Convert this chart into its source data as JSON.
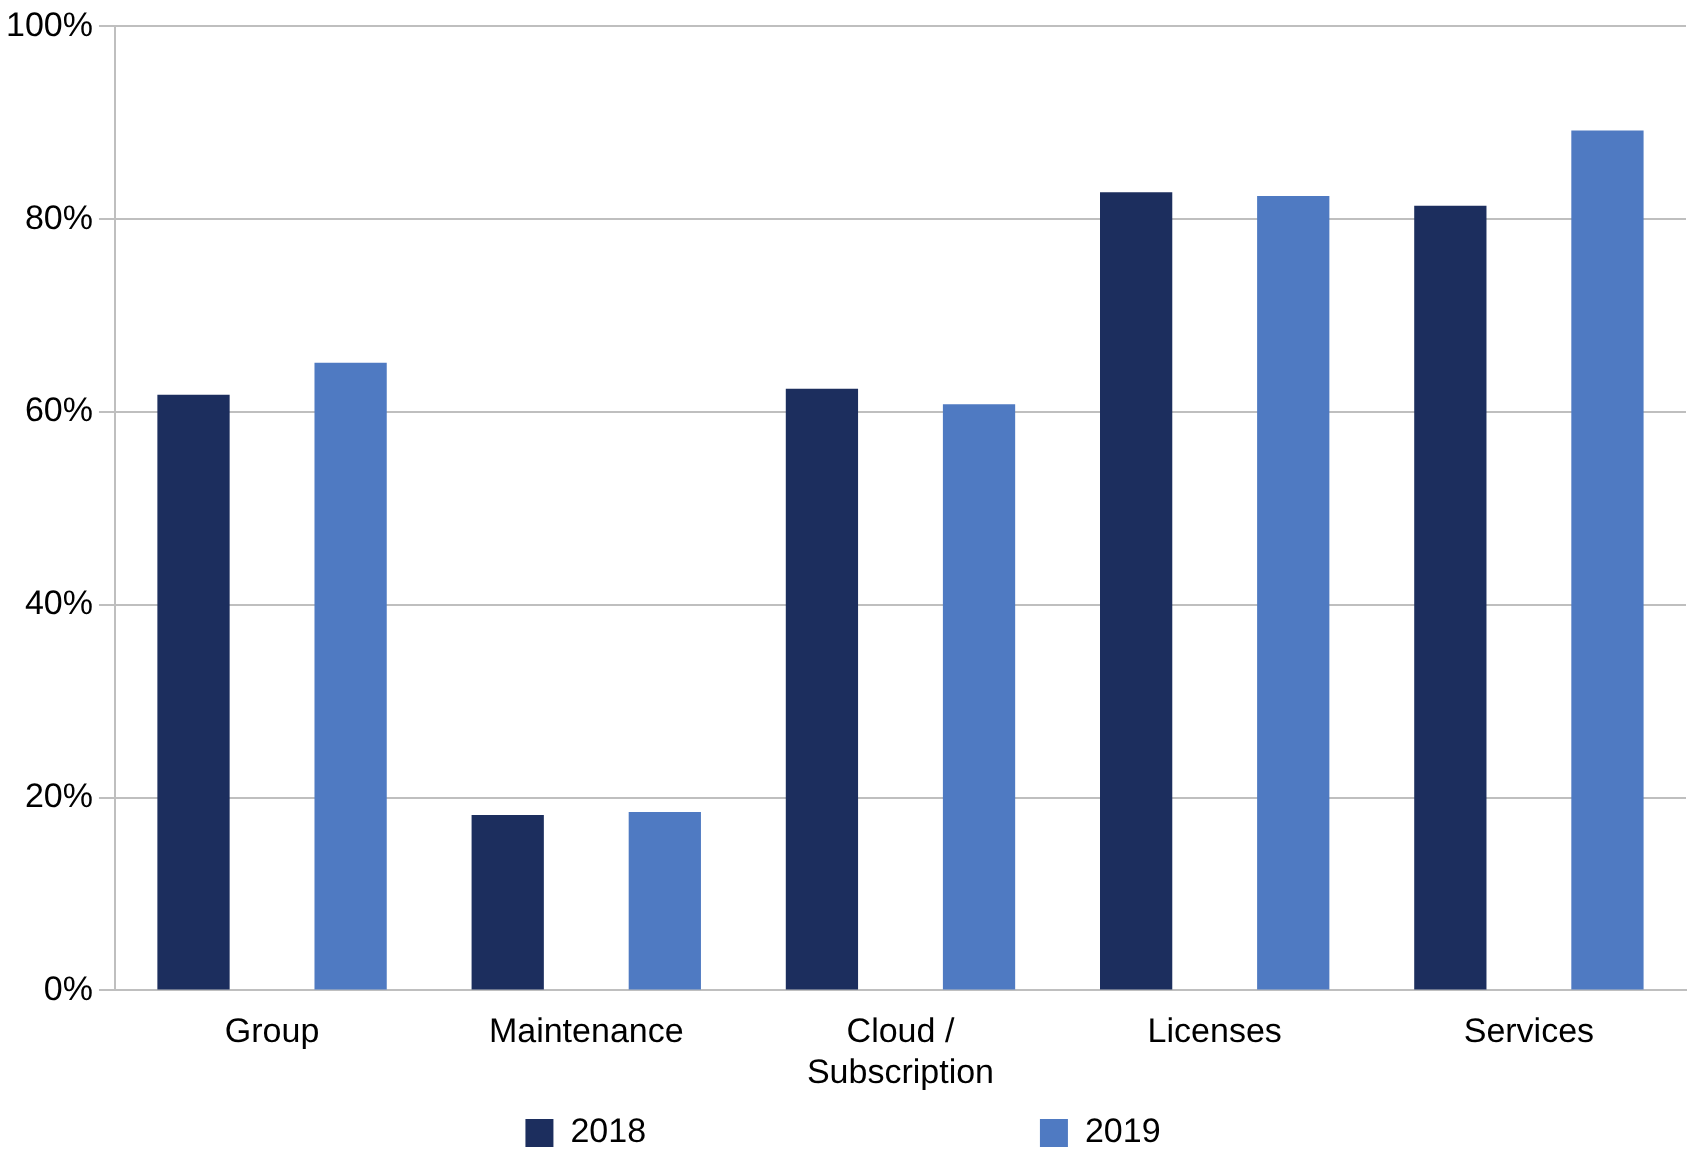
{
  "chart_data": {
    "type": "bar",
    "categories": [
      "Group",
      "Maintenance",
      "Cloud / Subscription",
      "Licenses",
      "Services"
    ],
    "series": [
      {
        "name": "2018",
        "color": "#1c2e5e",
        "values": [
          61.8,
          18.2,
          62.4,
          82.8,
          81.4
        ]
      },
      {
        "name": "2019",
        "color": "#4f7ac2",
        "values": [
          65.1,
          18.5,
          60.8,
          82.4,
          89.2
        ]
      }
    ],
    "ylim": [
      0,
      100
    ],
    "yticks": [
      {
        "value": 0,
        "label": "0%"
      },
      {
        "value": 20,
        "label": "20%"
      },
      {
        "value": 40,
        "label": "40%"
      },
      {
        "value": 60,
        "label": "60%"
      },
      {
        "value": 80,
        "label": "80%"
      },
      {
        "value": 100,
        "label": "100%"
      }
    ],
    "grid": "y",
    "legend": "bottom"
  }
}
